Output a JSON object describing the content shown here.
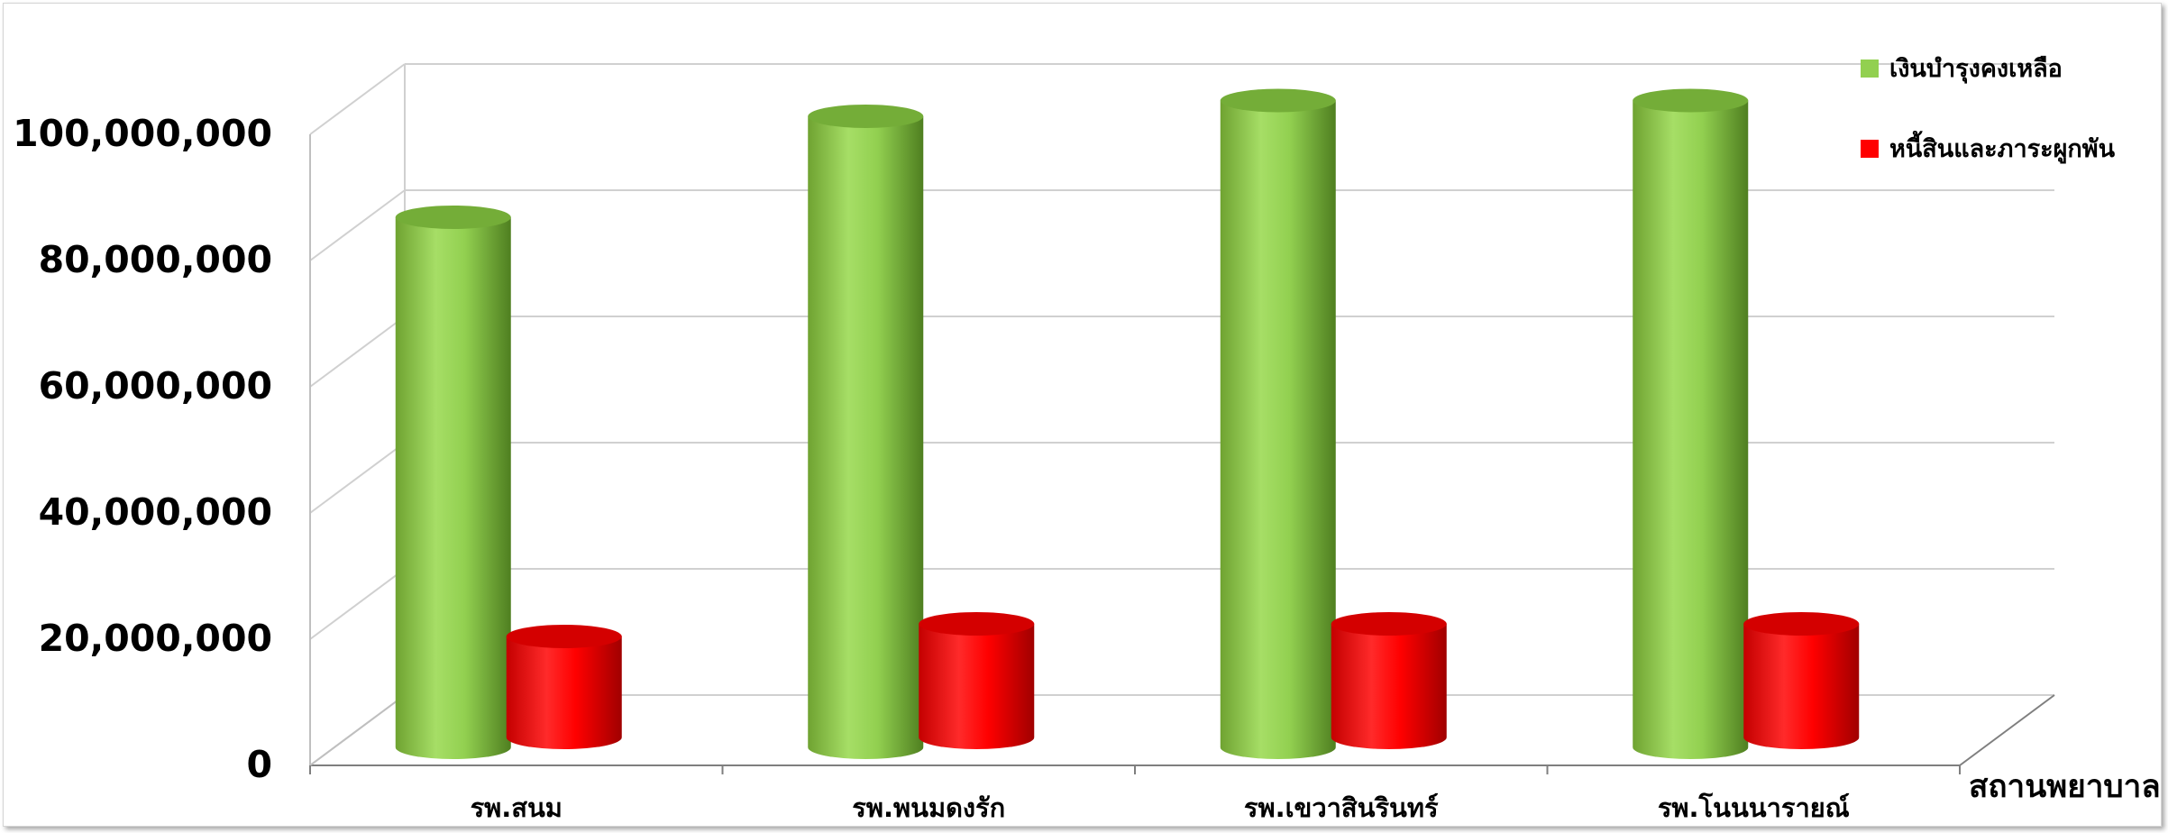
{
  "chart_data": {
    "type": "bar",
    "title": "",
    "xlabel": "สถานพยาบาล",
    "ylabel": "",
    "ylim": [
      0,
      100000000
    ],
    "yticks": [
      "0",
      "20,000,000",
      "40,000,000",
      "60,000,000",
      "80,000,000",
      "100,000,000"
    ],
    "categories": [
      "รพ.สนม",
      "รพ.พนมดงรัก",
      "รพ.เขวาสินรินทร์",
      "รพ.โนนนารายณ์"
    ],
    "series": [
      {
        "name": "เงินบำรุงคงเหลือ",
        "values": [
          84000000,
          100000000,
          102500000,
          102500000
        ],
        "color": "#92d050"
      },
      {
        "name": "หนี้สินและภาระผูกพัน",
        "values": [
          16000000,
          18000000,
          18000000,
          18000000
        ],
        "color": "#ff0000"
      }
    ],
    "grid": true,
    "legend_position": "top-right",
    "style": "3d-cylinder"
  }
}
